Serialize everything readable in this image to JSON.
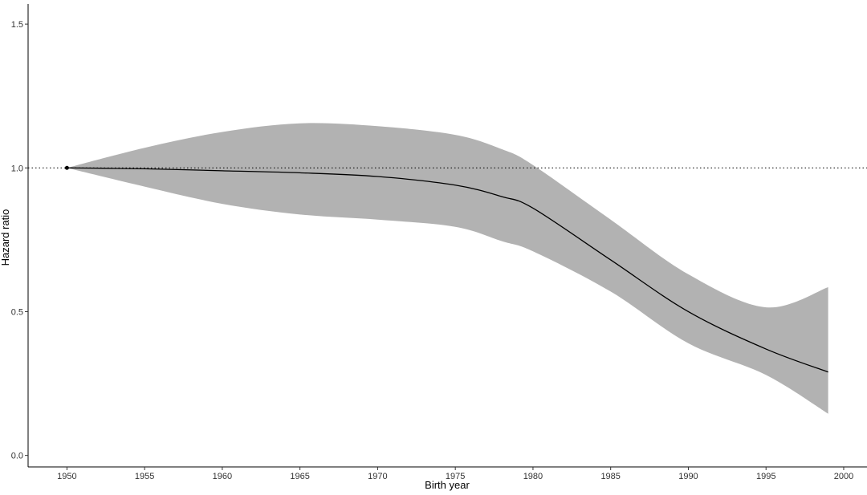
{
  "chart_data": {
    "type": "line",
    "xlabel": "Birth year",
    "ylabel": "Hazard ratio",
    "xlim": [
      1947.5,
      2001.5
    ],
    "ylim": [
      -0.04,
      1.57
    ],
    "xticks": [
      1950,
      1955,
      1960,
      1965,
      1970,
      1975,
      1980,
      1985,
      1990,
      1995,
      2000
    ],
    "yticks": [
      0.0,
      0.5,
      1.0,
      1.5
    ],
    "ytick_labels": [
      "0.0",
      "0.5",
      "1.0",
      "1.5"
    ],
    "reference_line": {
      "y": 1.0,
      "style": "dotted"
    },
    "reference_point": {
      "x": 1950,
      "y": 1.0
    },
    "series": [
      {
        "x": [
          1950,
          1955,
          1960,
          1965,
          1970,
          1975,
          1978,
          1980,
          1985,
          1990,
          1995,
          1999
        ],
        "values": [
          1.0,
          0.997,
          0.99,
          0.983,
          0.97,
          0.94,
          0.9,
          0.86,
          0.68,
          0.5,
          0.37,
          0.29
        ],
        "lower": [
          1.0,
          0.935,
          0.875,
          0.838,
          0.82,
          0.795,
          0.745,
          0.71,
          0.57,
          0.39,
          0.28,
          0.145
        ],
        "upper": [
          1.0,
          1.07,
          1.125,
          1.155,
          1.145,
          1.115,
          1.065,
          1.01,
          0.82,
          0.63,
          0.515,
          0.585
        ],
        "color": "#000000",
        "band_color": "#b2b2b2"
      }
    ],
    "grid": false
  }
}
